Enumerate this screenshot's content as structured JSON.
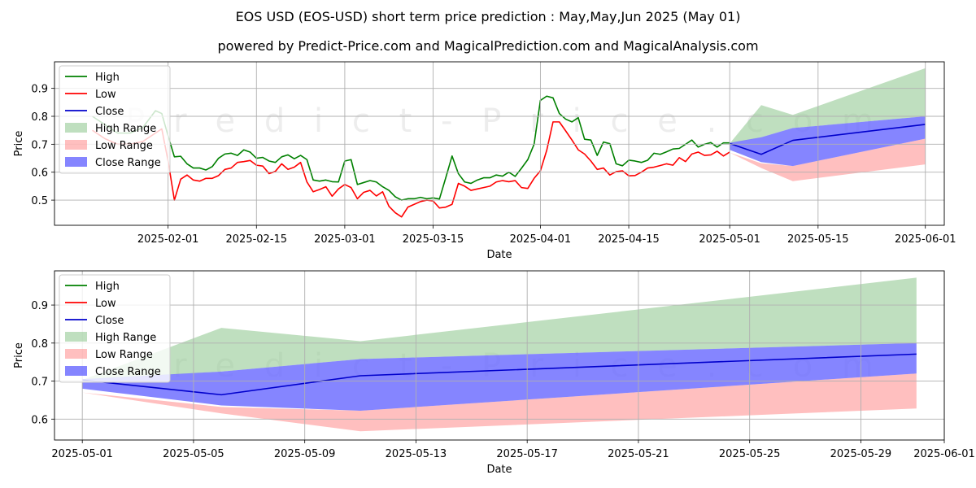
{
  "title": "EOS USD (EOS-USD) short term price prediction : May,May,Jun 2025 (May 01)",
  "subtitle": "powered by Predict-Price.com and MagicalPrediction.com and MagicalAnalysis.com",
  "watermark": "Predict-Price.com",
  "colors": {
    "high": "#008000",
    "low": "#ff0000",
    "close": "#0000cc",
    "high_range": "#94c994",
    "low_range": "#ff8080",
    "close_range": "#6666ff",
    "grid": "#b0b0b0"
  },
  "chart_data": [
    {
      "type": "line",
      "xlabel": "Date",
      "ylabel": "Price",
      "xlim": [
        "2025-01-14",
        "2025-06-04"
      ],
      "ylim": [
        0.41,
        0.995
      ],
      "x_ticks": [
        "2025-02-01",
        "2025-02-15",
        "2025-03-01",
        "2025-03-15",
        "2025-04-01",
        "2025-04-15",
        "2025-05-01",
        "2025-05-15",
        "2025-06-01"
      ],
      "y_ticks": [
        0.5,
        0.6,
        0.7,
        0.8,
        0.9
      ],
      "grid": true,
      "legend_position": "top-left",
      "legend": [
        "High",
        "Low",
        "Close",
        "High Range",
        "Low Range",
        "Close Range"
      ],
      "series": [
        {
          "name": "High",
          "x": [
            "2025-01-20",
            "2025-01-22",
            "2025-01-24",
            "2025-01-26",
            "2025-01-28",
            "2025-01-30",
            "2025-01-31",
            "2025-02-01",
            "2025-02-02",
            "2025-02-03",
            "2025-02-04",
            "2025-02-05",
            "2025-02-06",
            "2025-02-07",
            "2025-02-08",
            "2025-02-09",
            "2025-02-10",
            "2025-02-11",
            "2025-02-12",
            "2025-02-13",
            "2025-02-14",
            "2025-02-15",
            "2025-02-16",
            "2025-02-17",
            "2025-02-18",
            "2025-02-19",
            "2025-02-20",
            "2025-02-21",
            "2025-02-22",
            "2025-02-23",
            "2025-02-24",
            "2025-02-25",
            "2025-02-26",
            "2025-02-27",
            "2025-02-28",
            "2025-03-01",
            "2025-03-02",
            "2025-03-03",
            "2025-03-04",
            "2025-03-05",
            "2025-03-06",
            "2025-03-07",
            "2025-03-08",
            "2025-03-09",
            "2025-03-10",
            "2025-03-11",
            "2025-03-12",
            "2025-03-13",
            "2025-03-14",
            "2025-03-15",
            "2025-03-16",
            "2025-03-17",
            "2025-03-18",
            "2025-03-19",
            "2025-03-20",
            "2025-03-21",
            "2025-03-22",
            "2025-03-23",
            "2025-03-24",
            "2025-03-25",
            "2025-03-26",
            "2025-03-27",
            "2025-03-28",
            "2025-03-29",
            "2025-03-30",
            "2025-03-31",
            "2025-04-01",
            "2025-04-02",
            "2025-04-03",
            "2025-04-04",
            "2025-04-05",
            "2025-04-06",
            "2025-04-07",
            "2025-04-08",
            "2025-04-09",
            "2025-04-10",
            "2025-04-11",
            "2025-04-12",
            "2025-04-13",
            "2025-04-14",
            "2025-04-15",
            "2025-04-16",
            "2025-04-17",
            "2025-04-18",
            "2025-04-19",
            "2025-04-20",
            "2025-04-21",
            "2025-04-22",
            "2025-04-23",
            "2025-04-24",
            "2025-04-25",
            "2025-04-26",
            "2025-04-27",
            "2025-04-28",
            "2025-04-29",
            "2025-04-30",
            "2025-05-01"
          ],
          "values": [
            0.8,
            0.77,
            0.74,
            0.74,
            0.76,
            0.82,
            0.81,
            0.73,
            0.655,
            0.657,
            0.63,
            0.615,
            0.615,
            0.608,
            0.62,
            0.65,
            0.665,
            0.668,
            0.66,
            0.68,
            0.672,
            0.65,
            0.653,
            0.64,
            0.635,
            0.655,
            0.662,
            0.648,
            0.66,
            0.645,
            0.572,
            0.568,
            0.572,
            0.566,
            0.565,
            0.64,
            0.645,
            0.556,
            0.563,
            0.57,
            0.565,
            0.548,
            0.535,
            0.512,
            0.5,
            0.505,
            0.505,
            0.51,
            0.505,
            0.508,
            0.504,
            0.58,
            0.658,
            0.595,
            0.565,
            0.56,
            0.572,
            0.58,
            0.58,
            0.59,
            0.586,
            0.6,
            0.585,
            0.614,
            0.645,
            0.7,
            0.857,
            0.872,
            0.866,
            0.81,
            0.79,
            0.78,
            0.795,
            0.718,
            0.715,
            0.66,
            0.708,
            0.702,
            0.63,
            0.623,
            0.643,
            0.64,
            0.635,
            0.643,
            0.668,
            0.664,
            0.673,
            0.683,
            0.685,
            0.7,
            0.715,
            0.69,
            0.7,
            0.706,
            0.69,
            0.705,
            0.705
          ]
        },
        {
          "name": "Low",
          "x": [
            "2025-01-20",
            "2025-01-22",
            "2025-01-24",
            "2025-01-26",
            "2025-01-28",
            "2025-01-30",
            "2025-01-31",
            "2025-02-01",
            "2025-02-02",
            "2025-02-03",
            "2025-02-04",
            "2025-02-05",
            "2025-02-06",
            "2025-02-07",
            "2025-02-08",
            "2025-02-09",
            "2025-02-10",
            "2025-02-11",
            "2025-02-12",
            "2025-02-13",
            "2025-02-14",
            "2025-02-15",
            "2025-02-16",
            "2025-02-17",
            "2025-02-18",
            "2025-02-19",
            "2025-02-20",
            "2025-02-21",
            "2025-02-22",
            "2025-02-23",
            "2025-02-24",
            "2025-02-25",
            "2025-02-26",
            "2025-02-27",
            "2025-02-28",
            "2025-03-01",
            "2025-03-02",
            "2025-03-03",
            "2025-03-04",
            "2025-03-05",
            "2025-03-06",
            "2025-03-07",
            "2025-03-08",
            "2025-03-09",
            "2025-03-10",
            "2025-03-11",
            "2025-03-12",
            "2025-03-13",
            "2025-03-14",
            "2025-03-15",
            "2025-03-16",
            "2025-03-17",
            "2025-03-18",
            "2025-03-19",
            "2025-03-20",
            "2025-03-21",
            "2025-03-22",
            "2025-03-23",
            "2025-03-24",
            "2025-03-25",
            "2025-03-26",
            "2025-03-27",
            "2025-03-28",
            "2025-03-29",
            "2025-03-30",
            "2025-03-31",
            "2025-04-01",
            "2025-04-02",
            "2025-04-03",
            "2025-04-04",
            "2025-04-05",
            "2025-04-06",
            "2025-04-07",
            "2025-04-08",
            "2025-04-09",
            "2025-04-10",
            "2025-04-11",
            "2025-04-12",
            "2025-04-13",
            "2025-04-14",
            "2025-04-15",
            "2025-04-16",
            "2025-04-17",
            "2025-04-18",
            "2025-04-19",
            "2025-04-20",
            "2025-04-21",
            "2025-04-22",
            "2025-04-23",
            "2025-04-24",
            "2025-04-25",
            "2025-04-26",
            "2025-04-27",
            "2025-04-28",
            "2025-04-29",
            "2025-04-30",
            "2025-05-01"
          ],
          "values": [
            0.75,
            0.72,
            0.7,
            0.7,
            0.71,
            0.74,
            0.755,
            0.64,
            0.5,
            0.575,
            0.59,
            0.572,
            0.568,
            0.578,
            0.578,
            0.588,
            0.61,
            0.615,
            0.635,
            0.638,
            0.642,
            0.625,
            0.622,
            0.595,
            0.603,
            0.63,
            0.61,
            0.618,
            0.635,
            0.565,
            0.53,
            0.538,
            0.548,
            0.514,
            0.54,
            0.556,
            0.545,
            0.505,
            0.528,
            0.535,
            0.515,
            0.53,
            0.478,
            0.455,
            0.44,
            0.475,
            0.485,
            0.495,
            0.5,
            0.497,
            0.472,
            0.475,
            0.485,
            0.56,
            0.55,
            0.535,
            0.54,
            0.545,
            0.55,
            0.565,
            0.57,
            0.566,
            0.57,
            0.545,
            0.542,
            0.578,
            0.605,
            0.678,
            0.78,
            0.78,
            0.748,
            0.715,
            0.68,
            0.665,
            0.64,
            0.61,
            0.615,
            0.59,
            0.602,
            0.605,
            0.587,
            0.588,
            0.6,
            0.615,
            0.618,
            0.624,
            0.63,
            0.625,
            0.652,
            0.638,
            0.665,
            0.672,
            0.66,
            0.662,
            0.675,
            0.658,
            0.672
          ]
        },
        {
          "name": "Close",
          "x": [
            "2025-05-01",
            "2025-05-06",
            "2025-05-11",
            "2025-06-01"
          ],
          "values": [
            0.703,
            0.664,
            0.714,
            0.771
          ]
        }
      ],
      "bands": [
        {
          "name": "High Range",
          "x": [
            "2025-05-01",
            "2025-05-06",
            "2025-05-11",
            "2025-06-01"
          ],
          "lower": [
            0.703,
            0.725,
            0.758,
            0.8
          ],
          "upper": [
            0.703,
            0.84,
            0.805,
            0.972
          ]
        },
        {
          "name": "Low Range",
          "x": [
            "2025-05-01",
            "2025-05-06",
            "2025-05-11",
            "2025-06-01"
          ],
          "lower": [
            0.67,
            0.615,
            0.568,
            0.628
          ],
          "upper": [
            0.67,
            0.632,
            0.622,
            0.72
          ]
        },
        {
          "name": "Close Range",
          "x": [
            "2025-05-01",
            "2025-05-06",
            "2025-05-11",
            "2025-06-01"
          ],
          "lower": [
            0.68,
            0.636,
            0.622,
            0.72
          ],
          "upper": [
            0.705,
            0.725,
            0.758,
            0.8
          ]
        }
      ]
    },
    {
      "type": "line",
      "xlabel": "Date",
      "ylabel": "Price",
      "xlim": [
        "2025-04-30",
        "2025-06-01"
      ],
      "ylim": [
        0.545,
        0.99
      ],
      "x_ticks": [
        "2025-05-01",
        "2025-05-05",
        "2025-05-09",
        "2025-05-13",
        "2025-05-17",
        "2025-05-21",
        "2025-05-25",
        "2025-05-29",
        "2025-06-01"
      ],
      "y_ticks": [
        0.6,
        0.7,
        0.8,
        0.9
      ],
      "grid": true,
      "legend_position": "top-left",
      "legend": [
        "High",
        "Low",
        "Close",
        "High Range",
        "Low Range",
        "Close Range"
      ],
      "series": [
        {
          "name": "Close",
          "x": [
            "2025-05-01",
            "2025-05-06",
            "2025-05-11",
            "2025-05-31"
          ],
          "values": [
            0.703,
            0.664,
            0.714,
            0.771
          ]
        }
      ],
      "bands": [
        {
          "name": "High Range",
          "x": [
            "2025-05-01",
            "2025-05-06",
            "2025-05-11",
            "2025-05-31"
          ],
          "lower": [
            0.703,
            0.725,
            0.758,
            0.8
          ],
          "upper": [
            0.703,
            0.84,
            0.805,
            0.972
          ]
        },
        {
          "name": "Low Range",
          "x": [
            "2025-05-01",
            "2025-05-06",
            "2025-05-11",
            "2025-05-31"
          ],
          "lower": [
            0.67,
            0.615,
            0.568,
            0.628
          ],
          "upper": [
            0.67,
            0.632,
            0.622,
            0.72
          ]
        },
        {
          "name": "Close Range",
          "x": [
            "2025-05-01",
            "2025-05-06",
            "2025-05-11",
            "2025-05-31"
          ],
          "lower": [
            0.68,
            0.636,
            0.622,
            0.72
          ],
          "upper": [
            0.705,
            0.725,
            0.758,
            0.8
          ]
        }
      ]
    }
  ]
}
